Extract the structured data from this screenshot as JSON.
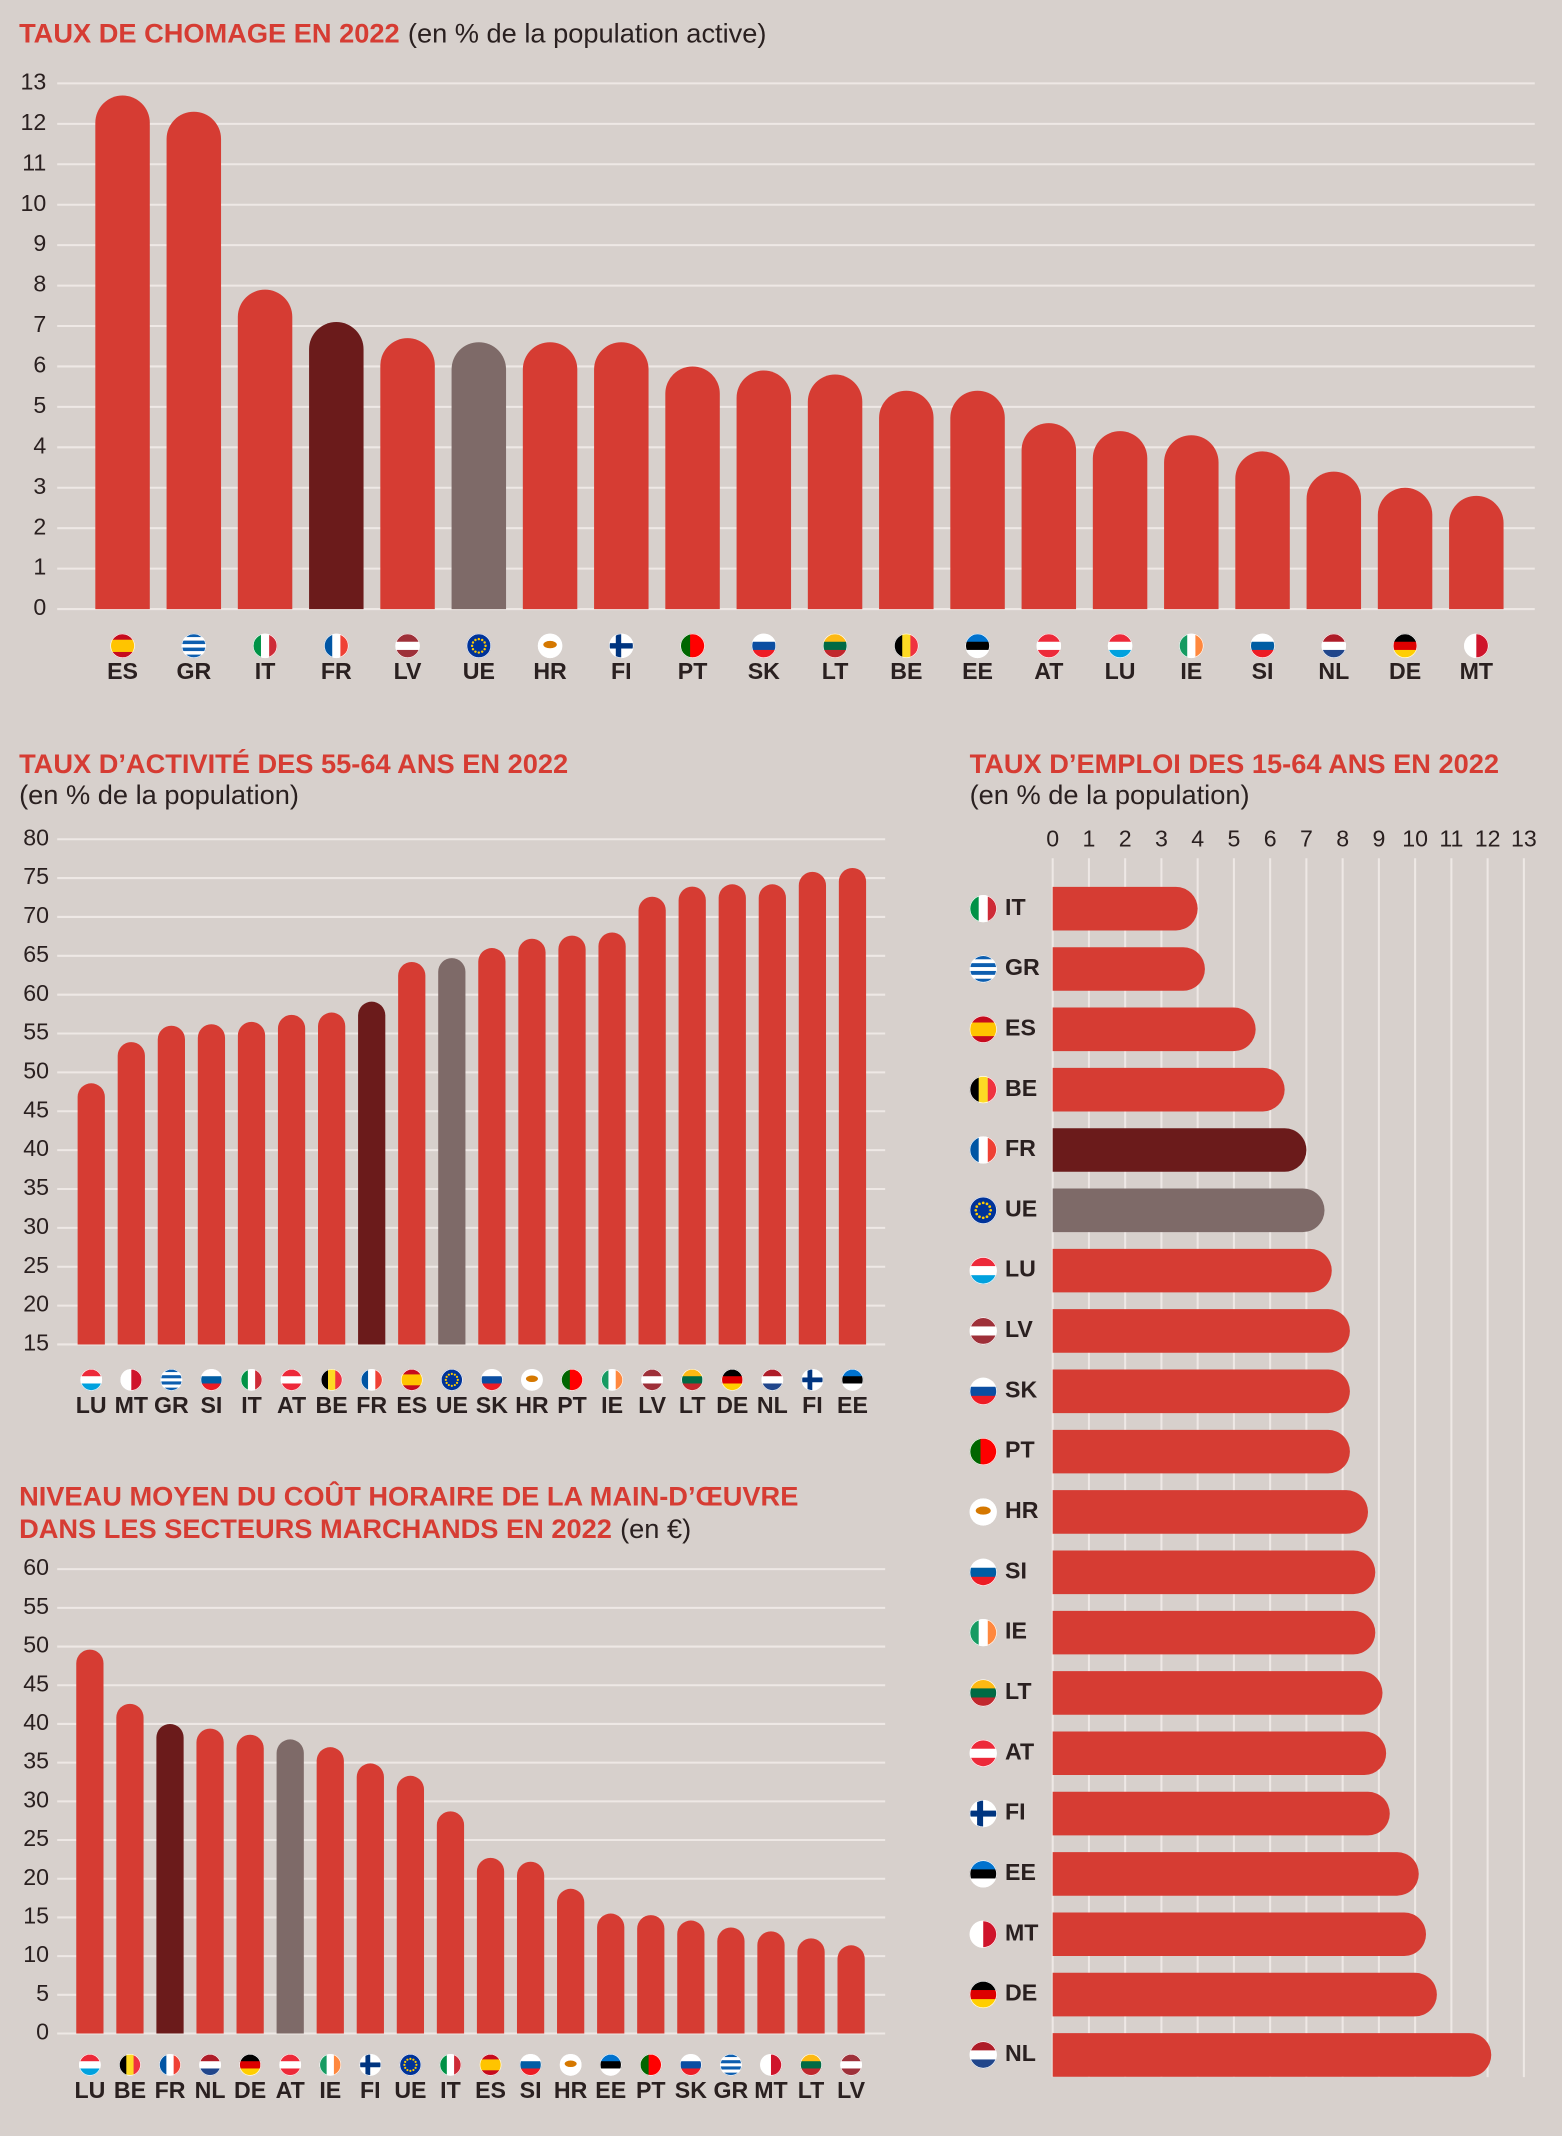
{
  "chart_data": [
    {
      "type": "bar",
      "title": "TAUX DE CHOMAGE EN 2022",
      "subtitle": "(en % de la population active)",
      "categories": [
        "ES",
        "GR",
        "IT",
        "FR",
        "LV",
        "UE",
        "HR",
        "FI",
        "PT",
        "SK",
        "LT",
        "BE",
        "EE",
        "AT",
        "LU",
        "IE",
        "SI",
        "NL",
        "DE",
        "MT"
      ],
      "values": [
        12.7,
        12.3,
        7.9,
        7.1,
        6.7,
        6.6,
        6.6,
        6.6,
        6.0,
        5.9,
        5.8,
        5.4,
        5.4,
        4.6,
        4.4,
        4.3,
        3.9,
        3.4,
        3.0,
        2.8
      ],
      "colors": [
        "#d63c33",
        "#d63c33",
        "#d63c33",
        "#6b1b1b",
        "#d63c33",
        "#7e6a68",
        "#d63c33",
        "#d63c33",
        "#d63c33",
        "#d63c33",
        "#d63c33",
        "#d63c33",
        "#d63c33",
        "#d63c33",
        "#d63c33",
        "#d63c33",
        "#d63c33",
        "#d63c33",
        "#d63c33",
        "#d63c33"
      ],
      "ylim": [
        0,
        13
      ],
      "yticks": [
        0,
        1,
        2,
        3,
        4,
        5,
        6,
        7,
        8,
        9,
        10,
        11,
        12,
        13
      ],
      "grid": true
    },
    {
      "type": "bar",
      "title": "TAUX D’ACTIVITÉ DES 55-64 ANS EN 2022",
      "subtitle": "(en % de la population)",
      "categories": [
        "LU",
        "MT",
        "GR",
        "SI",
        "IT",
        "AT",
        "BE",
        "FR",
        "ES",
        "UE",
        "SK",
        "HR",
        "PT",
        "IE",
        "LV",
        "LT",
        "DE",
        "NL",
        "FI",
        "EE"
      ],
      "values": [
        48.6,
        53.9,
        56.0,
        56.2,
        56.5,
        57.4,
        57.7,
        59.1,
        64.2,
        64.7,
        66.0,
        67.2,
        67.6,
        68.0,
        72.6,
        73.9,
        74.2,
        74.2,
        75.8,
        76.3
      ],
      "colors": [
        "#d63c33",
        "#d63c33",
        "#d63c33",
        "#d63c33",
        "#d63c33",
        "#d63c33",
        "#d63c33",
        "#6b1b1b",
        "#d63c33",
        "#7e6a68",
        "#d63c33",
        "#d63c33",
        "#d63c33",
        "#d63c33",
        "#d63c33",
        "#d63c33",
        "#d63c33",
        "#d63c33",
        "#d63c33",
        "#d63c33"
      ],
      "ylim": [
        15,
        80
      ],
      "yticks": [
        15,
        20,
        25,
        30,
        35,
        40,
        45,
        50,
        55,
        60,
        65,
        70,
        75,
        80
      ],
      "grid": true
    },
    {
      "type": "bar",
      "title": [
        "NIVEAU MOYEN DU COÛT HORAIRE DE LA MAIN-D’ŒUVRE",
        "DANS LES SECTEURS MARCHANDS EN 2022"
      ],
      "subtitle": "(en €)",
      "categories": [
        "LU",
        "BE",
        "FR",
        "NL",
        "DE",
        "AT",
        "IE",
        "FI",
        "UE",
        "IT",
        "ES",
        "SI",
        "HR",
        "EE",
        "PT",
        "SK",
        "GR",
        "MT",
        "LT",
        "LV"
      ],
      "values": [
        49.6,
        42.6,
        40.0,
        39.4,
        38.6,
        38.0,
        37.0,
        34.9,
        33.3,
        28.7,
        22.7,
        22.2,
        18.7,
        15.5,
        15.3,
        14.6,
        13.7,
        13.2,
        12.3,
        11.4
      ],
      "colors": [
        "#d63c33",
        "#d63c33",
        "#6b1b1b",
        "#d63c33",
        "#d63c33",
        "#7e6a68",
        "#d63c33",
        "#d63c33",
        "#d63c33",
        "#d63c33",
        "#d63c33",
        "#d63c33",
        "#d63c33",
        "#d63c33",
        "#d63c33",
        "#d63c33",
        "#d63c33",
        "#d63c33",
        "#d63c33",
        "#d63c33"
      ],
      "ylim": [
        0,
        60
      ],
      "yticks": [
        0,
        5,
        10,
        15,
        20,
        25,
        30,
        35,
        40,
        45,
        50,
        55,
        60
      ],
      "grid": true
    },
    {
      "type": "hbar",
      "title": "TAUX D’EMPLOI DES 15-64 ANS EN 2022",
      "subtitle": "(en % de la population)",
      "categories": [
        "IT",
        "GR",
        "ES",
        "BE",
        "FR",
        "UE",
        "LU",
        "LV",
        "SK",
        "PT",
        "HR",
        "SI",
        "IE",
        "LT",
        "AT",
        "FI",
        "EE",
        "MT",
        "DE",
        "NL"
      ],
      "values": [
        4.0,
        4.2,
        5.6,
        6.4,
        7.0,
        7.5,
        7.7,
        8.2,
        8.2,
        8.2,
        8.7,
        8.9,
        8.9,
        9.1,
        9.2,
        9.3,
        10.1,
        10.3,
        10.6,
        12.1
      ],
      "colors": [
        "#d63c33",
        "#d63c33",
        "#d63c33",
        "#d63c33",
        "#6b1b1b",
        "#7e6a68",
        "#d63c33",
        "#d63c33",
        "#d63c33",
        "#d63c33",
        "#d63c33",
        "#d63c33",
        "#d63c33",
        "#d63c33",
        "#d63c33",
        "#d63c33",
        "#d63c33",
        "#d63c33",
        "#d63c33",
        "#d63c33"
      ],
      "xlim": [
        0,
        13
      ],
      "xticks": [
        0,
        1,
        2,
        3,
        4,
        5,
        6,
        7,
        8,
        9,
        10,
        11,
        12,
        13
      ],
      "grid": true
    }
  ]
}
